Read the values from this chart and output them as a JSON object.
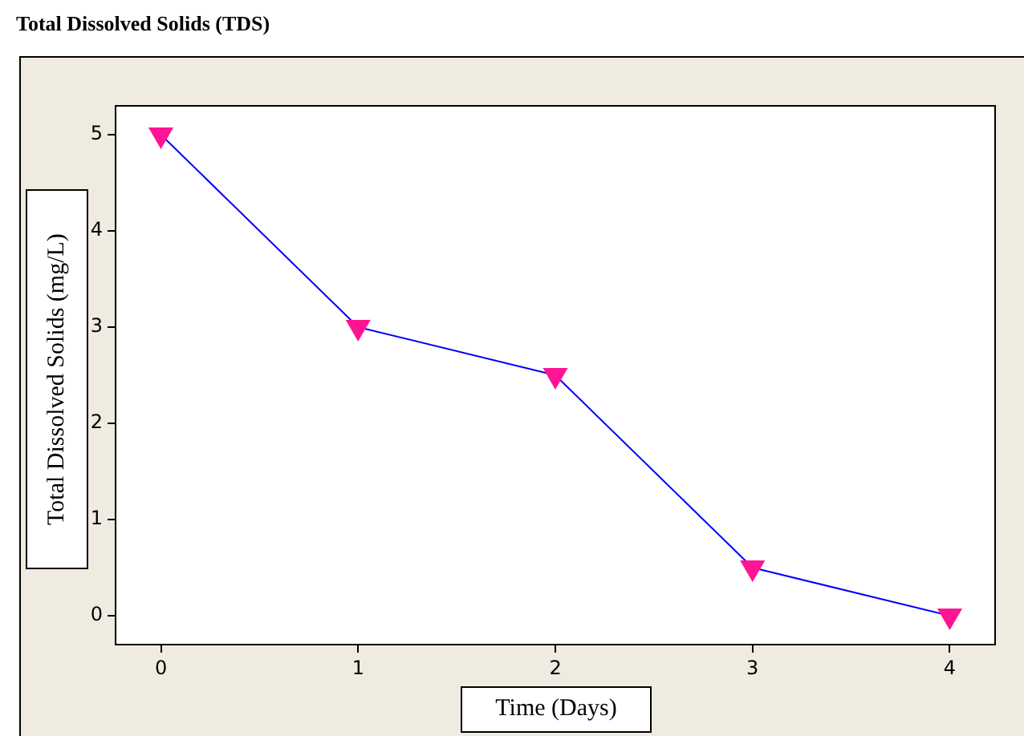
{
  "chart_data": {
    "type": "line",
    "title": "Total Dissolved Solids (TDS)",
    "xlabel": "Time (Days)",
    "ylabel": "Total Dissolved Solids (mg/L)",
    "x": [
      0,
      1,
      2,
      3,
      4
    ],
    "series": [
      {
        "color": "#0000ff",
        "values": [
          5,
          3,
          2.5,
          0.5,
          0
        ]
      }
    ],
    "marker": "triangle",
    "line_style": "solid",
    "grid": false,
    "legend": false,
    "xlim": [
      -0.23,
      4.23
    ],
    "xticks": [
      0,
      1,
      2,
      3,
      4
    ],
    "ylim": [
      -0.3,
      5.3
    ],
    "yticks": [
      0,
      1,
      2,
      3,
      4,
      5
    ]
  }
}
